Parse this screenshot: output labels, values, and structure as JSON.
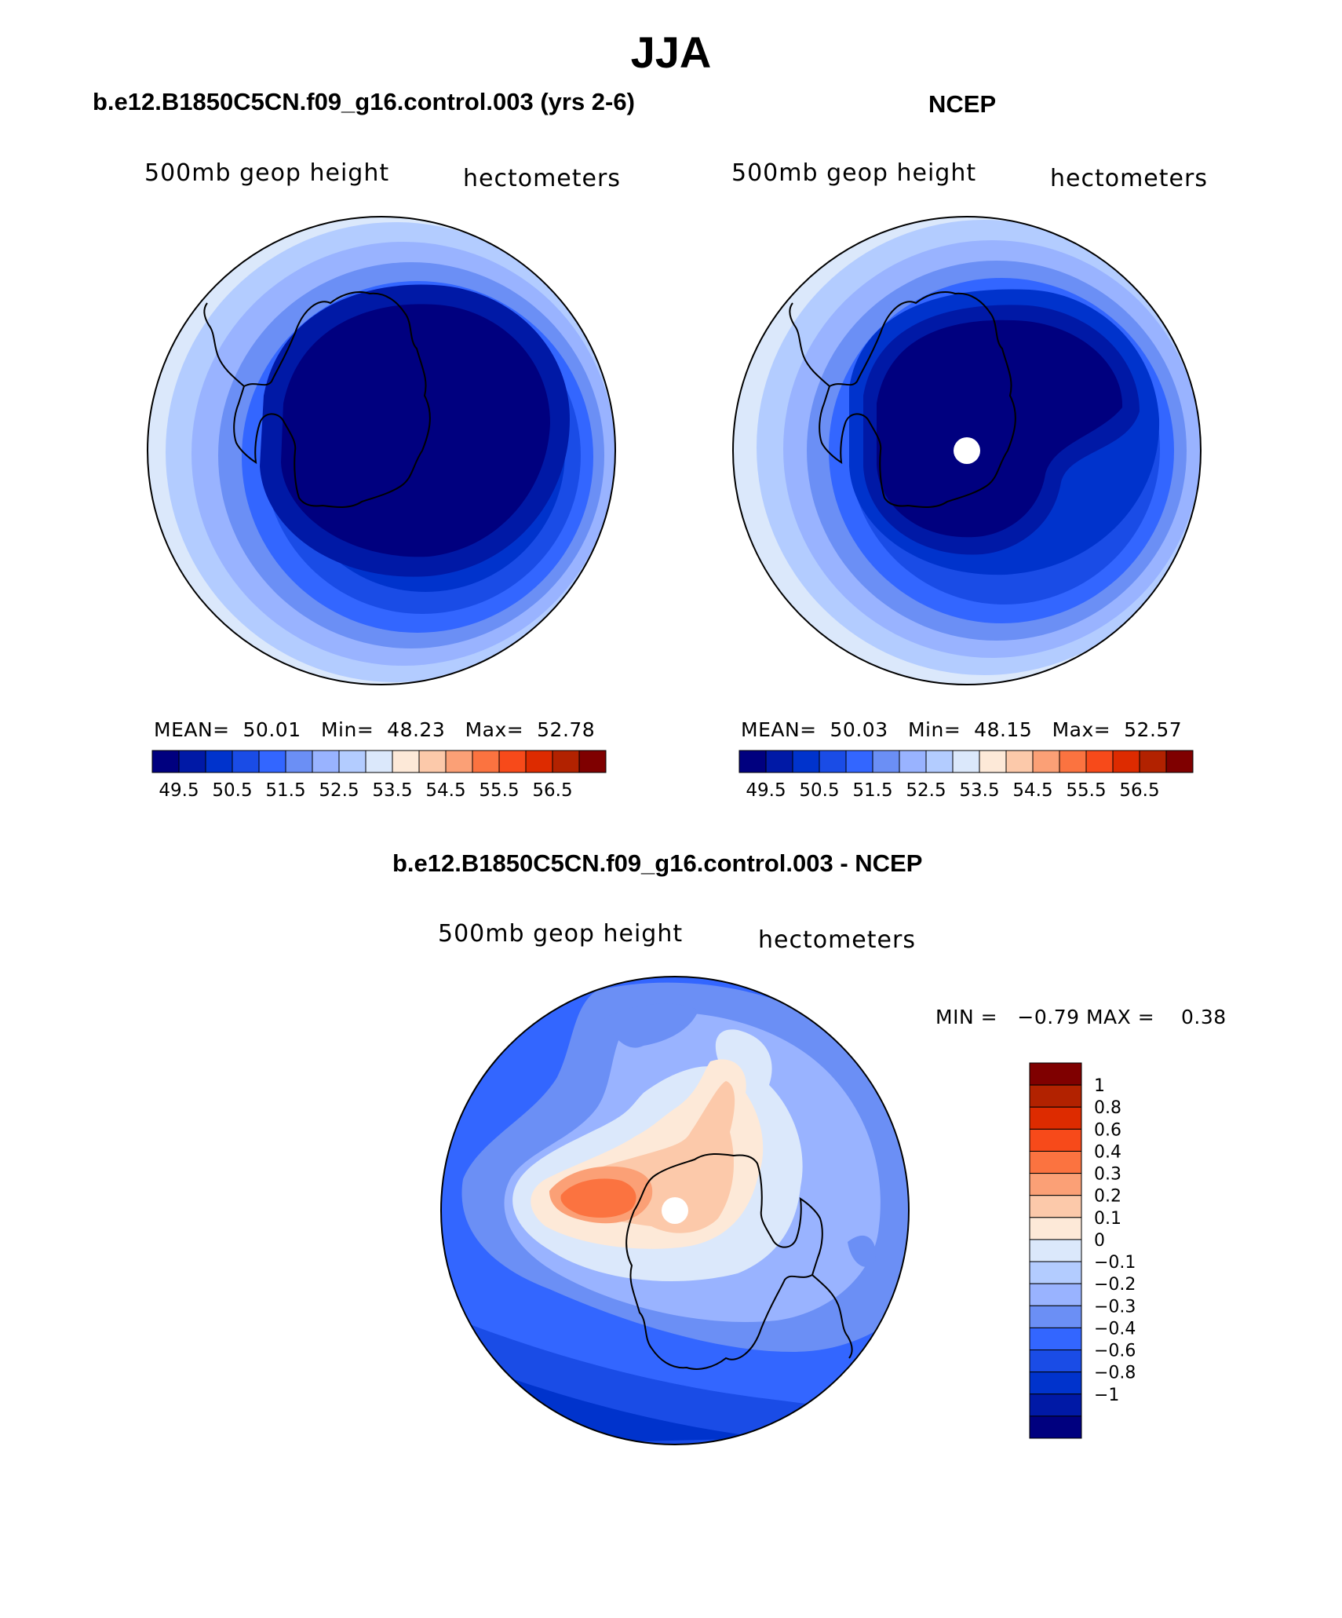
{
  "page_title": "JJA",
  "colors": {
    "model_obs_scale": [
      "#00007f",
      "#0019a6",
      "#0033cc",
      "#1a4ce6",
      "#3366ff",
      "#6b8ff5",
      "#99b3ff",
      "#b3ccff",
      "#dbe8fb",
      "#fde9d8",
      "#fcc9aa",
      "#fba076",
      "#fb7340",
      "#f74a1a",
      "#dd2b00",
      "#b22200",
      "#7f0000"
    ],
    "diff_scale": [
      "#00007f",
      "#0019a6",
      "#0033cc",
      "#1a4ce6",
      "#3366ff",
      "#6b8ff5",
      "#99b3ff",
      "#b3ccff",
      "#dbe8fb",
      "#fde9d8",
      "#fcc9aa",
      "#fba076",
      "#fb7340",
      "#f74a1a",
      "#dd2b00",
      "#b22200",
      "#7f0000"
    ],
    "continent_outline": "#000000",
    "pole_marker": "#ffffff"
  },
  "panels": {
    "model": {
      "title": "b.e12.B1850C5CN.f09_g16.control.003 (yrs 2-6)",
      "variable": "500mb geop height",
      "units": "hectometers",
      "stats": {
        "mean_label": "MEAN=",
        "mean": "50.01",
        "min_label": "Min=",
        "min": "48.23",
        "max_label": "Max=",
        "max": "52.78"
      },
      "colorbar_ticks": [
        "49.5",
        "50.5",
        "51.5",
        "52.5",
        "53.5",
        "54.5",
        "55.5",
        "56.5"
      ],
      "pole_marker": false
    },
    "obs": {
      "title": "NCEP",
      "variable": "500mb geop height",
      "units": "hectometers",
      "stats": {
        "mean_label": "MEAN=",
        "mean": "50.03",
        "min_label": "Min=",
        "min": "48.15",
        "max_label": "Max=",
        "max": "52.57"
      },
      "colorbar_ticks": [
        "49.5",
        "50.5",
        "51.5",
        "52.5",
        "53.5",
        "54.5",
        "55.5",
        "56.5"
      ],
      "pole_marker": true
    },
    "diff": {
      "title": "b.e12.B1850C5CN.f09_g16.control.003 - NCEP",
      "variable": "500mb geop height",
      "units": "hectometers",
      "minmax": {
        "min_label": "MIN =",
        "min": "−0.79",
        "max_label": "MAX =",
        "max": "0.38"
      },
      "colorbar_ticks": [
        "1",
        "0.8",
        "0.6",
        "0.4",
        "0.3",
        "0.2",
        "0.1",
        "0",
        "−0.1",
        "−0.2",
        "−0.3",
        "−0.4",
        "−0.6",
        "−0.8",
        "−1"
      ],
      "pole_marker": true
    }
  }
}
